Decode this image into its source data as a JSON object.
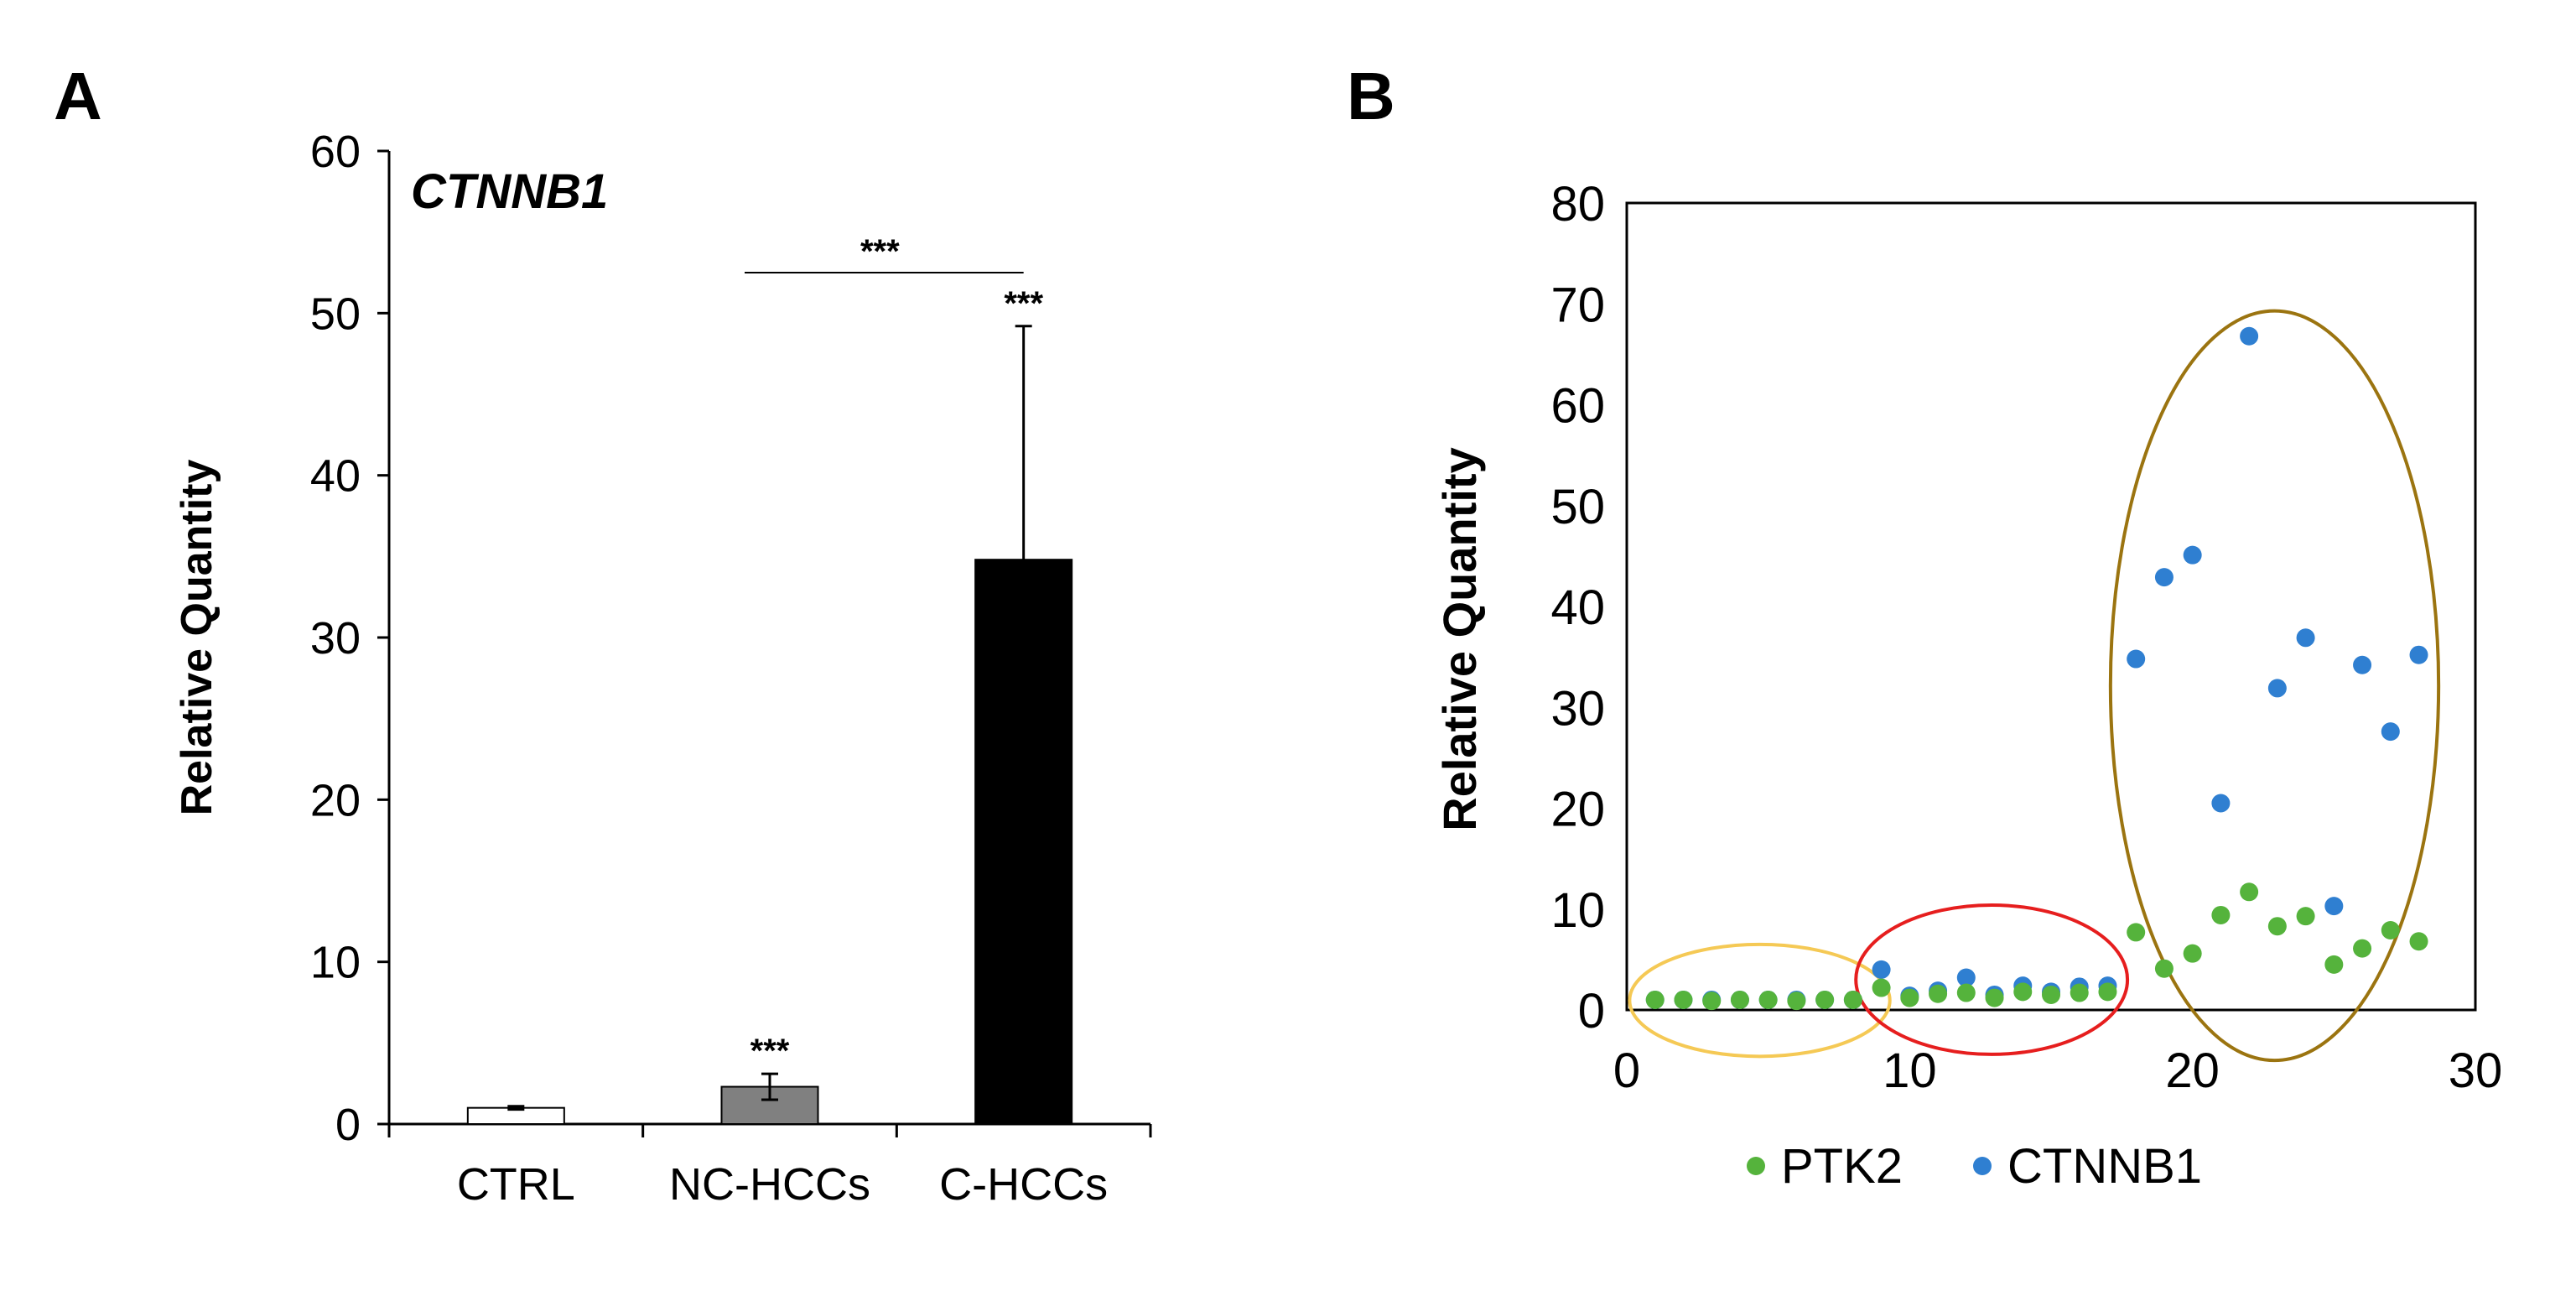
{
  "chart_data": [
    {
      "panel_label": "A",
      "type": "bar",
      "title": "CTNNB1",
      "xlabel": "",
      "ylabel": "Relative Quantity",
      "ylim": [
        0,
        60
      ],
      "yticks": [
        "0",
        "10",
        "20",
        "30",
        "40",
        "50",
        "60"
      ],
      "categories": [
        "CTRL",
        "NC-HCCs",
        "C-HCCs"
      ],
      "values": [
        1.0,
        2.3,
        34.8
      ],
      "errors": [
        0.1,
        0.8,
        14.4
      ],
      "bar_colors": [
        "#ffffff",
        "#808080",
        "#000000"
      ],
      "significance_labels": [
        "",
        "***",
        "***"
      ],
      "comparison": {
        "from": "NC-HCCs",
        "to": "C-HCCs",
        "label": "***"
      }
    },
    {
      "panel_label": "B",
      "type": "scatter",
      "title": "",
      "xlabel": "",
      "ylabel": "Relative Quantity",
      "xlim": [
        0,
        30
      ],
      "ylim": [
        0,
        80
      ],
      "xticks": [
        "0",
        "10",
        "20",
        "30"
      ],
      "yticks": [
        "0",
        "10",
        "20",
        "30",
        "40",
        "50",
        "60",
        "70",
        "80"
      ],
      "legend_position": "bottom",
      "series": [
        {
          "name": "PTK2",
          "color": "#55b33c",
          "x": [
            1,
            2,
            3,
            4,
            5,
            6,
            7,
            8,
            9,
            10,
            11,
            12,
            13,
            14,
            15,
            16,
            17,
            18,
            19,
            20,
            21,
            22,
            23,
            24,
            25,
            26,
            27,
            28
          ],
          "y": [
            1.0,
            1.0,
            0.9,
            1.0,
            1.0,
            0.9,
            1.0,
            1.0,
            2.2,
            1.2,
            1.6,
            1.7,
            1.2,
            1.8,
            1.5,
            1.7,
            1.8,
            7.7,
            4.1,
            5.6,
            9.4,
            11.7,
            8.3,
            9.3,
            4.5,
            6.1,
            7.9,
            6.8
          ]
        },
        {
          "name": "CTNNB1",
          "color": "#2f7fd1",
          "x": [
            1,
            2,
            3,
            4,
            5,
            6,
            7,
            8,
            9,
            10,
            11,
            12,
            13,
            14,
            15,
            16,
            17,
            18,
            19,
            20,
            21,
            22,
            23,
            24,
            25,
            26,
            27,
            28
          ],
          "y": [
            1.0,
            1.0,
            1.0,
            1.0,
            1.0,
            1.0,
            1.0,
            1.0,
            4.0,
            1.4,
            1.9,
            3.2,
            1.5,
            2.4,
            1.8,
            2.3,
            2.4,
            34.8,
            42.9,
            45.1,
            20.5,
            66.8,
            31.9,
            36.9,
            10.3,
            34.2,
            27.6,
            35.2
          ]
        }
      ],
      "groups": [
        {
          "name": "group-1",
          "color": "#f5c955",
          "x_range": [
            1,
            8
          ]
        },
        {
          "name": "group-2",
          "color": "#e61e1e",
          "x_range": [
            9,
            17
          ]
        },
        {
          "name": "group-3",
          "color": "#9b7410",
          "x_range": [
            18,
            28
          ]
        }
      ]
    }
  ]
}
